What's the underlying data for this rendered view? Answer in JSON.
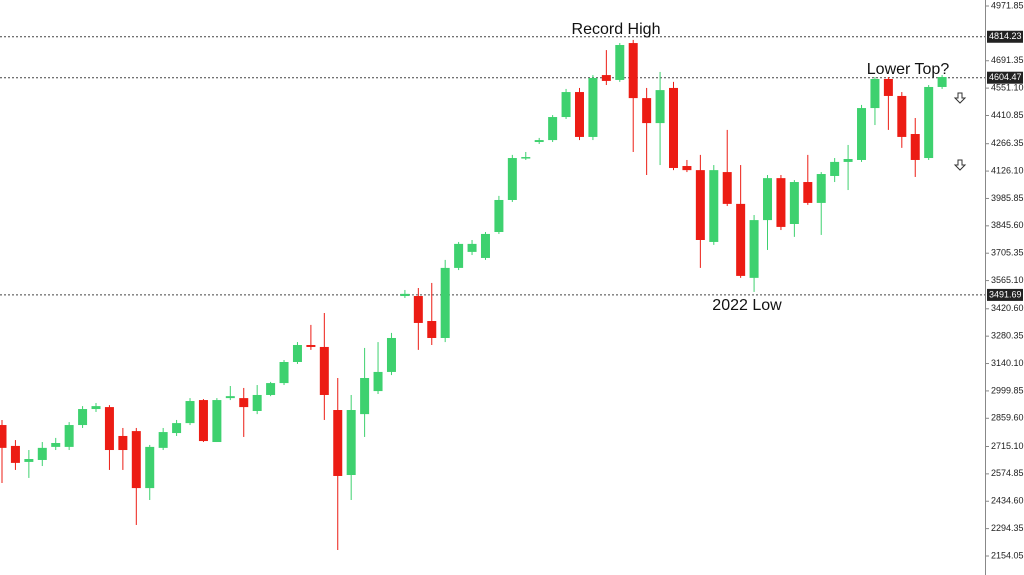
{
  "chart_data": {
    "type": "candlestick",
    "up_color": "#3ed16f",
    "down_color": "#ec1c14",
    "ylim": [
      2154.05,
      4971.85
    ],
    "yticks": [
      4971.85,
      4691.35,
      {
        "value": 4551.1,
        "label": "4551.10"
      },
      4410.85,
      4266.35,
      {
        "value": 4126.1,
        "label": "4126.10"
      },
      3985.85,
      {
        "value": 3845.6,
        "label": "3845.60"
      },
      3705.35,
      {
        "value": 3565.1,
        "label": "3565.10"
      },
      {
        "value": 3420.6,
        "label": "3420.60"
      },
      3280.35,
      {
        "value": 3140.1,
        "label": "3140.10"
      },
      2999.85,
      {
        "value": 2859.6,
        "label": "2859.60"
      },
      {
        "value": 2715.1,
        "label": "2715.10"
      },
      2574.85,
      {
        "value": 2434.6,
        "label": "2434.60"
      },
      2294.35,
      2154.05
    ],
    "levels": [
      4814.23,
      4604.47,
      3491.69
    ],
    "annotations": [
      "Record High",
      "Lower Top?",
      "2022 Low"
    ],
    "open": [
      2825,
      2718,
      2636,
      2646,
      2713,
      2713,
      2825,
      2907,
      2917,
      2769,
      2794,
      2502,
      2708,
      2784,
      2835,
      2953,
      2738,
      2963,
      2963,
      2897,
      2979,
      3040,
      3148,
      3235,
      3225,
      2902,
      2569,
      2881,
      2999,
      3097,
      3486,
      3486,
      3358,
      3271,
      3630,
      3712,
      3681,
      3814,
      3978,
      4193,
      4275,
      4285,
      4403,
      4531,
      4301,
      4618,
      4593,
      4782,
      4500,
      4372,
      4552,
      4152,
      4131,
      3763,
      4121,
      3958,
      3579,
      3875,
      4090,
      3855,
      4070,
      3963,
      4101,
      4173,
      4183,
      4449,
      4598,
      4511,
      4316,
      4193,
      4557
    ],
    "high": [
      2851,
      2748,
      2697,
      2738,
      2759,
      2840,
      2922,
      2938,
      2927,
      2810,
      2810,
      2723,
      2810,
      2851,
      2963,
      2958,
      2963,
      3025,
      3015,
      3030,
      3046,
      3158,
      3250,
      3338,
      3399,
      3066,
      2979,
      3220,
      3250,
      3297,
      3517,
      3527,
      3553,
      3671,
      3763,
      3773,
      3814,
      3999,
      4209,
      4224,
      4296,
      4413,
      4547,
      4552,
      4618,
      4746,
      4782,
      4798,
      4552,
      4634,
      4583,
      4183,
      4209,
      4157,
      4337,
      4157,
      3901,
      4106,
      4106,
      4080,
      4209,
      4121,
      4193,
      4260,
      4465,
      4608,
      4608,
      4531,
      4398,
      4567,
      4618
    ],
    "low": [
      2528,
      2595,
      2554,
      2615,
      2697,
      2697,
      2810,
      2892,
      2595,
      2595,
      2313,
      2441,
      2697,
      2769,
      2825,
      2738,
      2738,
      2953,
      2764,
      2881,
      2973,
      3030,
      3138,
      3210,
      2851,
      2185,
      2441,
      2764,
      2984,
      3081,
      3476,
      3210,
      3235,
      3250,
      3619,
      3696,
      3671,
      3804,
      3968,
      4183,
      4265,
      4275,
      4393,
      4285,
      4285,
      4567,
      4583,
      4224,
      4106,
      4157,
      4131,
      4121,
      3630,
      3748,
      3947,
      3579,
      3507,
      3722,
      3824,
      3789,
      3953,
      3799,
      4070,
      4029,
      4173,
      4362,
      4337,
      4245,
      4096,
      4183,
      4547
    ],
    "close": [
      2708,
      2631,
      2651,
      2708,
      2733,
      2825,
      2907,
      2922,
      2697,
      2697,
      2502,
      2713,
      2789,
      2835,
      2948,
      2743,
      2953,
      2973,
      2917,
      2979,
      3040,
      3148,
      3235,
      3225,
      2979,
      2564,
      2902,
      3066,
      3097,
      3271,
      3497,
      3348,
      3271,
      3630,
      3753,
      3753,
      3804,
      3978,
      4193,
      4198,
      4285,
      4403,
      4531,
      4301,
      4603,
      4588,
      4772,
      4500,
      4372,
      4541,
      4142,
      4131,
      3773,
      4131,
      3958,
      3589,
      3875,
      4090,
      3840,
      4070,
      3963,
      4111,
      4173,
      4188,
      4449,
      4598,
      4511,
      4301,
      4183,
      4557,
      4608
    ]
  }
}
